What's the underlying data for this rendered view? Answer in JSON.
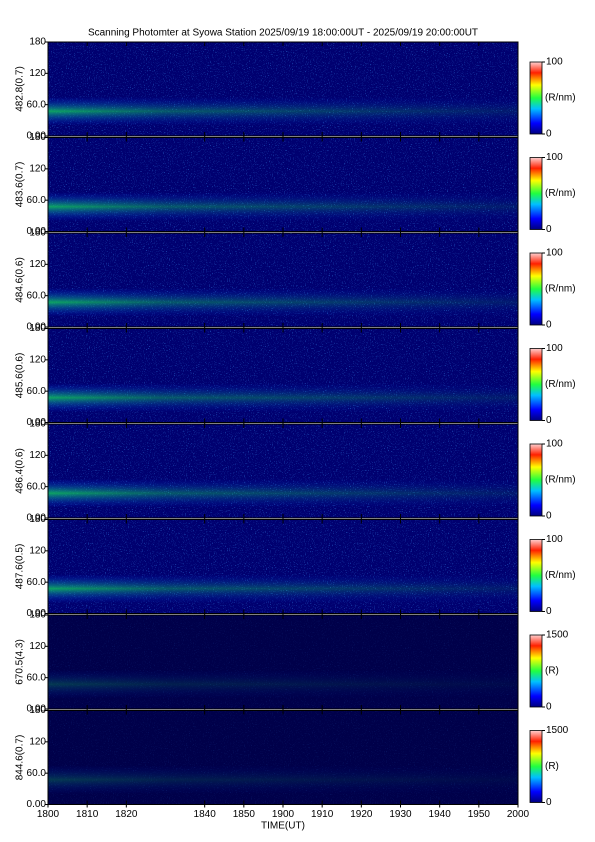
{
  "chart_data": {
    "type": "heatmap",
    "title": "Scanning Photomter at Syowa Station 2025/09/19 18:00:00UT - 2025/09/19 20:00:00UT",
    "xlabel": "TIME(UT)",
    "xlim": [
      0,
      120
    ],
    "xticks": [
      {
        "value": 0,
        "label": "1800"
      },
      {
        "value": 10,
        "label": "1810"
      },
      {
        "value": 20,
        "label": "1820"
      },
      {
        "value": 40,
        "label": "1840"
      },
      {
        "value": 50,
        "label": "1850"
      },
      {
        "value": 60,
        "label": "1900"
      },
      {
        "value": 70,
        "label": "1910"
      },
      {
        "value": 80,
        "label": "1920"
      },
      {
        "value": 90,
        "label": "1930"
      },
      {
        "value": 100,
        "label": "1940"
      },
      {
        "value": 110,
        "label": "1950"
      },
      {
        "value": 120,
        "label": "2000"
      }
    ],
    "panels": [
      {
        "ylabel": "482.8(0.7)",
        "ylim": [
          0,
          180
        ],
        "yticks": [
          {
            "value": 0,
            "label": "0.00"
          },
          {
            "value": 60,
            "label": "60.0"
          },
          120,
          180
        ],
        "colorbar": {
          "label": "(R/nm)",
          "lim": [
            0,
            100
          ],
          "ticks": [
            0,
            100
          ]
        }
      },
      {
        "ylabel": "483.6(0.7)",
        "ylim": [
          0,
          180
        ],
        "yticks": [
          {
            "value": 0,
            "label": "0.00"
          },
          {
            "value": 60,
            "label": "60.0"
          },
          120,
          180
        ],
        "colorbar": {
          "label": "(R/nm)",
          "lim": [
            0,
            100
          ],
          "ticks": [
            0,
            100
          ]
        }
      },
      {
        "ylabel": "484.6(0.6)",
        "ylim": [
          0,
          180
        ],
        "yticks": [
          {
            "value": 0,
            "label": "0.00"
          },
          {
            "value": 60,
            "label": "60.0"
          },
          120,
          180
        ],
        "colorbar": {
          "label": "(R/nm)",
          "lim": [
            0,
            100
          ],
          "ticks": [
            0,
            100
          ]
        }
      },
      {
        "ylabel": "485.6(0.6)",
        "ylim": [
          0,
          180
        ],
        "yticks": [
          {
            "value": 0,
            "label": "0.00"
          },
          {
            "value": 60,
            "label": "60.0"
          },
          120,
          180
        ],
        "colorbar": {
          "label": "(R/nm)",
          "lim": [
            0,
            100
          ],
          "ticks": [
            0,
            100
          ]
        }
      },
      {
        "ylabel": "486.4(0.6)",
        "ylim": [
          0,
          180
        ],
        "yticks": [
          {
            "value": 0,
            "label": "0.00"
          },
          {
            "value": 60,
            "label": "60.0"
          },
          120,
          180
        ],
        "colorbar": {
          "label": "(R/nm)",
          "lim": [
            0,
            100
          ],
          "ticks": [
            0,
            100
          ]
        }
      },
      {
        "ylabel": "487.6(0.5)",
        "ylim": [
          0,
          180
        ],
        "yticks": [
          {
            "value": 0,
            "label": "0.00"
          },
          {
            "value": 60,
            "label": "60.0"
          },
          120,
          180
        ],
        "colorbar": {
          "label": "(R/nm)",
          "lim": [
            0,
            100
          ],
          "ticks": [
            0,
            100
          ]
        }
      },
      {
        "ylabel": "670.5(4.3)",
        "ylim": [
          0,
          180
        ],
        "yticks": [
          {
            "value": 0,
            "label": "0.00"
          },
          {
            "value": 60,
            "label": "60.0"
          },
          120,
          180
        ],
        "colorbar": {
          "label": "(R)",
          "lim": [
            0,
            1500
          ],
          "ticks": [
            0,
            1500
          ]
        }
      },
      {
        "ylabel": "844.6(0.7)",
        "ylim": [
          0,
          180
        ],
        "yticks": [
          {
            "value": 0,
            "label": "0.00"
          },
          {
            "value": 60,
            "label": "60.0"
          },
          120,
          180
        ],
        "colorbar": {
          "label": "(R)",
          "lim": [
            0,
            1500
          ],
          "ticks": [
            0,
            1500
          ]
        }
      }
    ]
  }
}
